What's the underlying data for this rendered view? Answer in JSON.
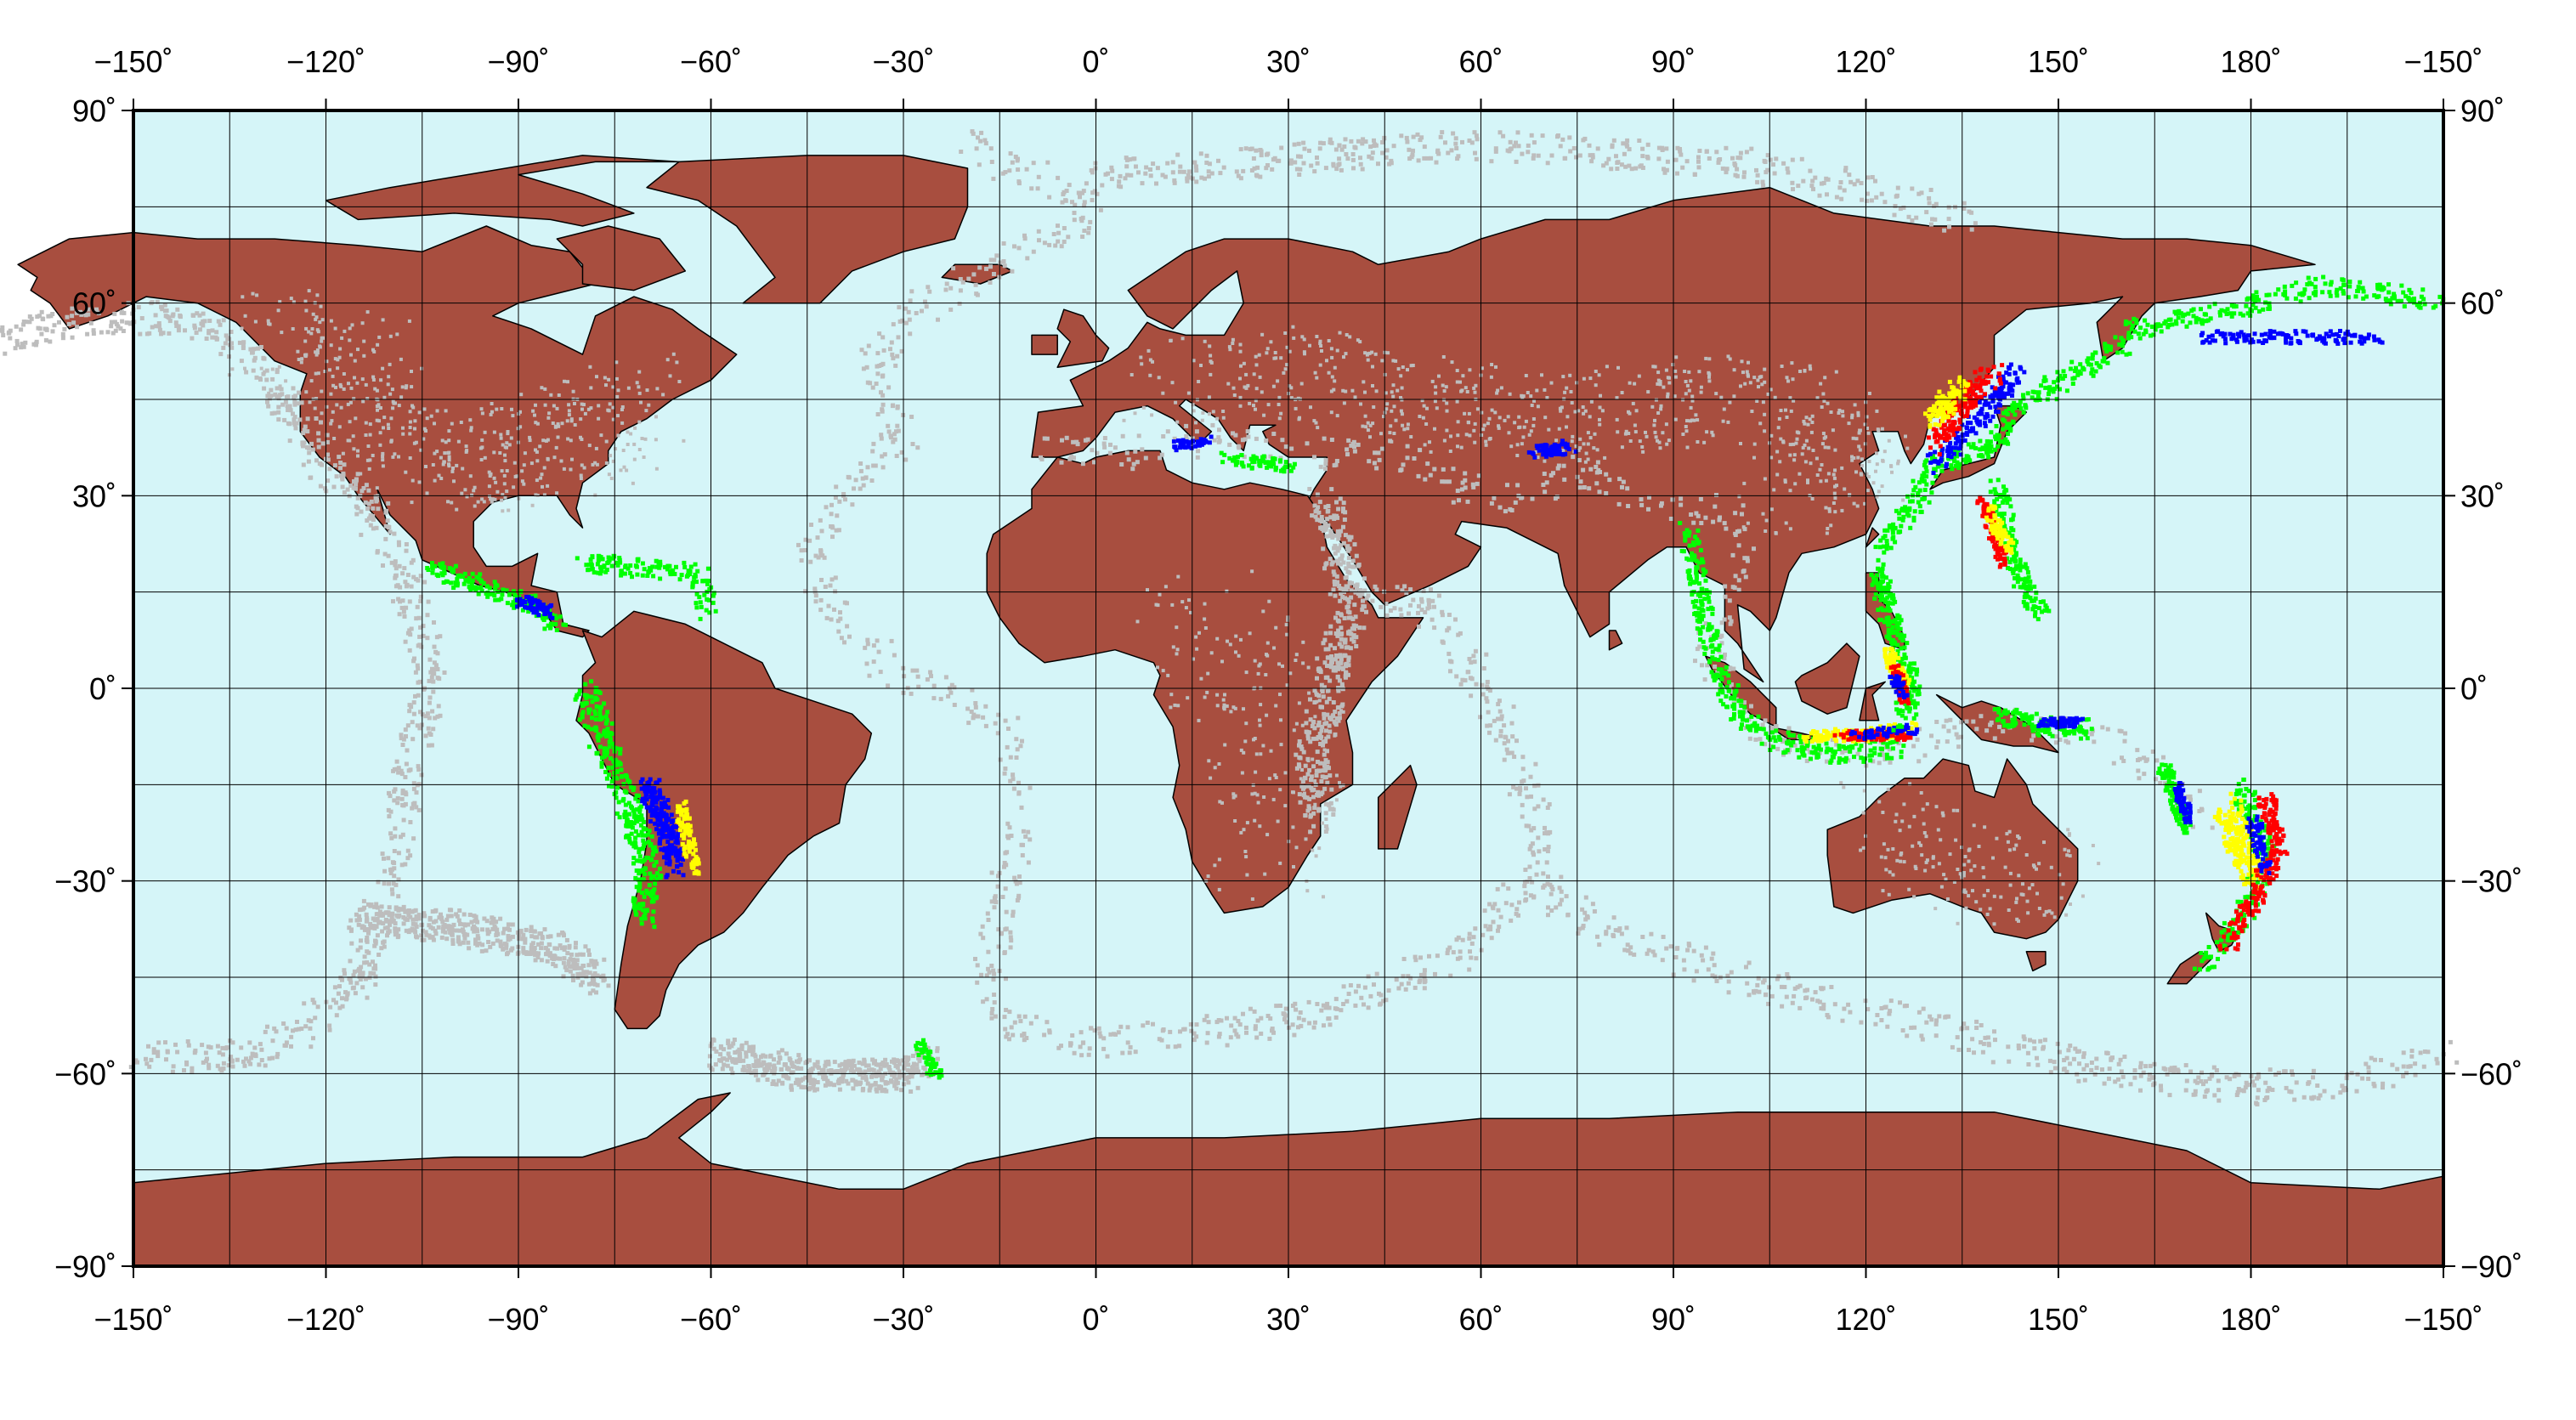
{
  "map": {
    "projection": "equirectangular",
    "lon_range": [
      -150,
      210
    ],
    "lat_range": [
      -90,
      90
    ],
    "grid_step": 15,
    "labeled_lon_ticks": [
      {
        "value": -150,
        "label": "−150˚"
      },
      {
        "value": -120,
        "label": "−120˚"
      },
      {
        "value": -90,
        "label": "−90˚"
      },
      {
        "value": -60,
        "label": "−60˚"
      },
      {
        "value": -30,
        "label": "−30˚"
      },
      {
        "value": 0,
        "label": "0˚"
      },
      {
        "value": 30,
        "label": "30˚"
      },
      {
        "value": 60,
        "label": "60˚"
      },
      {
        "value": 90,
        "label": "90˚"
      },
      {
        "value": 120,
        "label": "120˚"
      },
      {
        "value": 150,
        "label": "150˚"
      },
      {
        "value": 180,
        "label": "180˚"
      },
      {
        "value": 210,
        "label": "−150˚"
      }
    ],
    "labeled_lat_ticks": [
      {
        "value": 90,
        "label": "90˚"
      },
      {
        "value": 60,
        "label": "60˚"
      },
      {
        "value": 30,
        "label": "30˚"
      },
      {
        "value": 0,
        "label": "0˚"
      },
      {
        "value": -30,
        "label": "−30˚"
      },
      {
        "value": -60,
        "label": "−60˚"
      },
      {
        "value": -90,
        "label": "−90˚"
      }
    ],
    "colors": {
      "ocean": "#d5f5f8",
      "land": "#a84e3f",
      "grid": "#000000",
      "seismicity_background": "#bdbdbd",
      "depth_class_1": "#00ff00",
      "depth_class_2": "#0000ff",
      "depth_class_3": "#ff0000",
      "depth_class_4": "#ffff00"
    }
  }
}
